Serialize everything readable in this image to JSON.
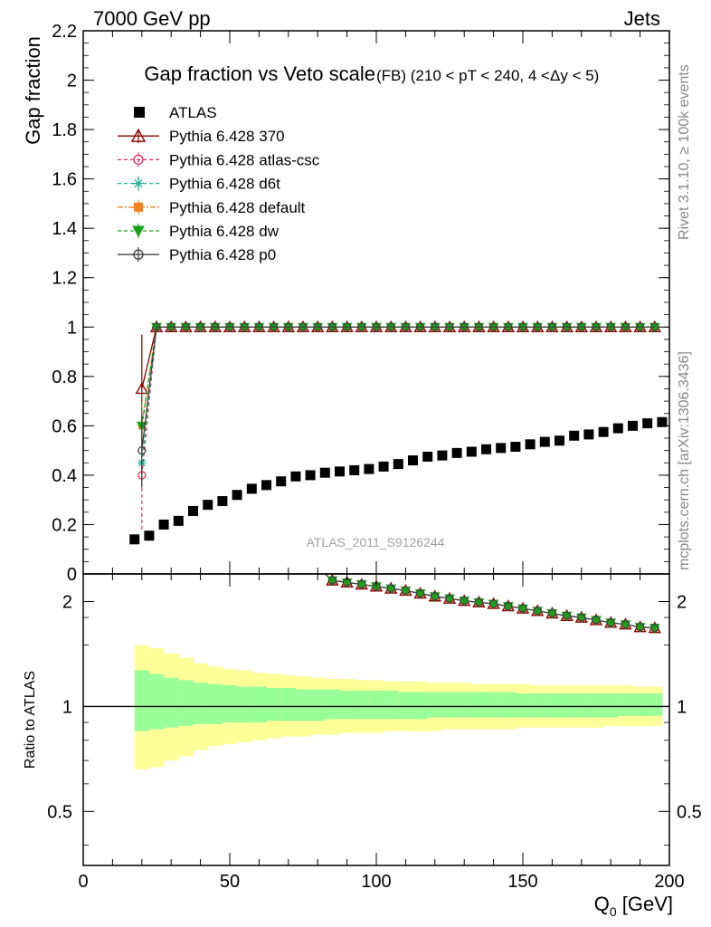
{
  "header": {
    "left": "7000 GeV pp",
    "right": "Jets"
  },
  "side_labels": {
    "rivet": "Rivet 3.1.10, ≥ 100k events",
    "mcplots": "mcplots.cern.ch [arXiv:1306.3436]"
  },
  "watermark": "ATLAS_2011_S9126244",
  "chart_data": [
    {
      "type": "line",
      "title": "Gap fraction vs Veto scale",
      "subtitle": "(FB) (210 < pT < 240, 4 <Δy < 5)",
      "ylabel": "Gap fraction",
      "xlabel": "",
      "xlim": [
        0,
        200
      ],
      "ylim": [
        0,
        2.2
      ],
      "yticks": [
        "0",
        "0.2",
        "0.4",
        "0.6",
        "0.8",
        "1",
        "1.2",
        "1.4",
        "1.6",
        "1.8",
        "2",
        "2.2"
      ],
      "legend_placement": "top-left",
      "atlas": {
        "name": "ATLAS",
        "x": [
          17.5,
          22.5,
          27.5,
          32.5,
          37.5,
          42.5,
          47.5,
          52.5,
          57.5,
          62.5,
          67.5,
          72.5,
          77.5,
          82.5,
          87.5,
          92.5,
          97.5,
          102.5,
          107.5,
          112.5,
          117.5,
          122.5,
          127.5,
          132.5,
          137.5,
          142.5,
          147.5,
          152.5,
          157.5,
          162.5,
          167.5,
          172.5,
          177.5,
          182.5,
          187.5,
          192.5,
          197.5
        ],
        "y": [
          0.14,
          0.155,
          0.2,
          0.215,
          0.255,
          0.28,
          0.295,
          0.32,
          0.345,
          0.36,
          0.375,
          0.395,
          0.4,
          0.41,
          0.415,
          0.42,
          0.425,
          0.435,
          0.445,
          0.46,
          0.475,
          0.48,
          0.49,
          0.495,
          0.505,
          0.51,
          0.515,
          0.525,
          0.535,
          0.54,
          0.56,
          0.565,
          0.575,
          0.59,
          0.6,
          0.61,
          0.615
        ]
      },
      "series": [
        {
          "name": "Pythia 6.428 370",
          "color": "#8b0000",
          "marker": "triangle",
          "dash": "",
          "x": [
            20,
            25,
            30,
            35,
            40,
            45,
            50,
            55,
            60,
            65,
            70,
            75,
            80,
            85,
            90,
            95,
            100,
            105,
            110,
            115,
            120,
            125,
            130,
            135,
            140,
            145,
            150,
            155,
            160,
            165,
            170,
            175,
            180,
            185,
            190,
            195
          ],
          "y": [
            0.75,
            1,
            1,
            1,
            1,
            1,
            1,
            1,
            1,
            1,
            1,
            1,
            1,
            1,
            1,
            1,
            1,
            1,
            1,
            1,
            1,
            1,
            1,
            1,
            1,
            1,
            1,
            1,
            1,
            1,
            1,
            1,
            1,
            1,
            1,
            1
          ],
          "err_lo": 0.22,
          "err_hi": 0.22
        },
        {
          "name": "Pythia 6.428 atlas-csc",
          "color": "#e0305a",
          "marker": "circle-open",
          "dash": "4,3",
          "x": [
            20,
            25,
            30,
            35,
            40,
            45,
            50,
            55,
            60,
            65,
            70,
            75,
            80,
            85,
            90,
            95,
            100,
            105,
            110,
            115,
            120,
            125,
            130,
            135,
            140,
            145,
            150,
            155,
            160,
            165,
            170,
            175,
            180,
            185,
            190,
            195
          ],
          "y": [
            0.4,
            1,
            1,
            1,
            1,
            1,
            1,
            1,
            1,
            1,
            1,
            1,
            1,
            1,
            1,
            1,
            1,
            1,
            1,
            1,
            1,
            1,
            1,
            1,
            1,
            1,
            1,
            1,
            1,
            1,
            1,
            1,
            1,
            1,
            1,
            1
          ],
          "err_lo": 0.22,
          "err_hi": 0.2
        },
        {
          "name": "Pythia 6.428 d6t",
          "color": "#20b090",
          "marker": "star",
          "dash": "4,3",
          "x": [
            20,
            25,
            30,
            35,
            40,
            45,
            50,
            55,
            60,
            65,
            70,
            75,
            80,
            85,
            90,
            95,
            100,
            105,
            110,
            115,
            120,
            125,
            130,
            135,
            140,
            145,
            150,
            155,
            160,
            165,
            170,
            175,
            180,
            185,
            190,
            195
          ],
          "y": [
            0.45,
            1,
            1,
            1,
            1,
            1,
            1,
            1,
            1,
            1,
            1,
            1,
            1,
            1,
            1,
            1,
            1,
            1,
            1,
            1,
            1,
            1,
            1,
            1,
            1,
            1,
            1,
            1,
            1,
            1,
            1,
            1,
            1,
            1,
            1,
            1
          ],
          "err_lo": 0.1,
          "err_hi": 0.1
        },
        {
          "name": "Pythia 6.428 default",
          "color": "#f08020",
          "marker": "square",
          "dash": "6,2,2,2",
          "x": [
            20,
            25,
            30,
            35,
            40,
            45,
            50,
            55,
            60,
            65,
            70,
            75,
            80,
            85,
            90,
            95,
            100,
            105,
            110,
            115,
            120,
            125,
            130,
            135,
            140,
            145,
            150,
            155,
            160,
            165,
            170,
            175,
            180,
            185,
            190,
            195
          ],
          "y": [
            0.6,
            1,
            1,
            1,
            1,
            1,
            1,
            1,
            1,
            1,
            1,
            1,
            1,
            1,
            1,
            1,
            1,
            1,
            1,
            1,
            1,
            1,
            1,
            1,
            1,
            1,
            1,
            1,
            1,
            1,
            1,
            1,
            1,
            1,
            1,
            1
          ],
          "err_lo": 0.1,
          "err_hi": 0.1
        },
        {
          "name": "Pythia 6.428 dw",
          "color": "#18a018",
          "marker": "triangle-down",
          "dash": "4,3",
          "x": [
            20,
            25,
            30,
            35,
            40,
            45,
            50,
            55,
            60,
            65,
            70,
            75,
            80,
            85,
            90,
            95,
            100,
            105,
            110,
            115,
            120,
            125,
            130,
            135,
            140,
            145,
            150,
            155,
            160,
            165,
            170,
            175,
            180,
            185,
            190,
            195
          ],
          "y": [
            0.6,
            1,
            1,
            1,
            1,
            1,
            1,
            1,
            1,
            1,
            1,
            1,
            1,
            1,
            1,
            1,
            1,
            1,
            1,
            1,
            1,
            1,
            1,
            1,
            1,
            1,
            1,
            1,
            1,
            1,
            1,
            1,
            1,
            1,
            1,
            1
          ],
          "err_lo": 0.12,
          "err_hi": 0.12
        },
        {
          "name": "Pythia 6.428 p0",
          "color": "#404040",
          "marker": "circle-open",
          "dash": "",
          "x": [
            20,
            25,
            30,
            35,
            40,
            45,
            50,
            55,
            60,
            65,
            70,
            75,
            80,
            85,
            90,
            95,
            100,
            105,
            110,
            115,
            120,
            125,
            130,
            135,
            140,
            145,
            150,
            155,
            160,
            165,
            170,
            175,
            180,
            185,
            190,
            195
          ],
          "y": [
            0.5,
            1,
            1,
            1,
            1,
            1,
            1,
            1,
            1,
            1,
            1,
            1,
            1,
            1,
            1,
            1,
            1,
            1,
            1,
            1,
            1,
            1,
            1,
            1,
            1,
            1,
            1,
            1,
            1,
            1,
            1,
            1,
            1,
            1,
            1,
            1
          ],
          "err_lo": 0.15,
          "err_hi": 0.15
        }
      ]
    },
    {
      "type": "line",
      "ylabel": "Ratio to ATLAS",
      "xlabel": "Q",
      "xlabel_sub": "0",
      "xlabel_unit": " [GeV]",
      "xlim": [
        0,
        200
      ],
      "xticks": [
        "0",
        "50",
        "100",
        "150",
        "200"
      ],
      "ylim": [
        0.35,
        2.4
      ],
      "yscale": "log",
      "yticks": [
        "0.5",
        "1",
        "2"
      ],
      "reference_line": 1,
      "band_edges": [
        17.5,
        22.5,
        27.5,
        32.5,
        37.5,
        42.5,
        47.5,
        52.5,
        57.5,
        62.5,
        67.5,
        72.5,
        77.5,
        82.5,
        87.5,
        92.5,
        97.5,
        102.5,
        107.5,
        112.5,
        117.5,
        122.5,
        127.5,
        132.5,
        137.5,
        142.5,
        147.5,
        152.5,
        157.5,
        162.5,
        167.5,
        172.5,
        177.5,
        182.5,
        187.5,
        192.5,
        197.5
      ],
      "band_outer_hi": [
        1.5,
        1.47,
        1.42,
        1.38,
        1.33,
        1.3,
        1.28,
        1.27,
        1.25,
        1.24,
        1.23,
        1.22,
        1.21,
        1.2,
        1.2,
        1.19,
        1.19,
        1.18,
        1.18,
        1.18,
        1.17,
        1.17,
        1.17,
        1.16,
        1.16,
        1.16,
        1.16,
        1.15,
        1.15,
        1.15,
        1.15,
        1.15,
        1.15,
        1.15,
        1.14,
        1.14
      ],
      "band_outer_lo": [
        0.66,
        0.67,
        0.7,
        0.72,
        0.75,
        0.77,
        0.78,
        0.79,
        0.8,
        0.81,
        0.82,
        0.82,
        0.83,
        0.83,
        0.84,
        0.84,
        0.84,
        0.85,
        0.85,
        0.85,
        0.85,
        0.86,
        0.86,
        0.86,
        0.86,
        0.86,
        0.87,
        0.87,
        0.87,
        0.87,
        0.87,
        0.87,
        0.88,
        0.88,
        0.88,
        0.88
      ],
      "band_inner_hi": [
        1.27,
        1.24,
        1.21,
        1.19,
        1.17,
        1.16,
        1.15,
        1.14,
        1.14,
        1.13,
        1.13,
        1.12,
        1.12,
        1.12,
        1.11,
        1.11,
        1.11,
        1.11,
        1.1,
        1.1,
        1.1,
        1.1,
        1.1,
        1.1,
        1.1,
        1.1,
        1.09,
        1.09,
        1.09,
        1.09,
        1.09,
        1.09,
        1.09,
        1.09,
        1.09,
        1.09
      ],
      "band_inner_lo": [
        0.85,
        0.86,
        0.87,
        0.88,
        0.89,
        0.89,
        0.9,
        0.9,
        0.9,
        0.91,
        0.91,
        0.91,
        0.91,
        0.92,
        0.92,
        0.92,
        0.92,
        0.92,
        0.92,
        0.92,
        0.93,
        0.93,
        0.93,
        0.93,
        0.93,
        0.93,
        0.93,
        0.93,
        0.93,
        0.93,
        0.93,
        0.93,
        0.93,
        0.94,
        0.94,
        0.94
      ],
      "ratio_x": [
        85,
        90,
        95,
        100,
        105,
        110,
        115,
        120,
        125,
        130,
        135,
        140,
        145,
        150,
        155,
        160,
        165,
        170,
        175,
        180,
        185,
        190,
        195
      ],
      "ratio_y": [
        2.3,
        2.27,
        2.24,
        2.21,
        2.18,
        2.15,
        2.11,
        2.07,
        2.04,
        2.01,
        1.99,
        1.97,
        1.94,
        1.91,
        1.88,
        1.85,
        1.82,
        1.8,
        1.77,
        1.74,
        1.72,
        1.69,
        1.68
      ]
    }
  ]
}
